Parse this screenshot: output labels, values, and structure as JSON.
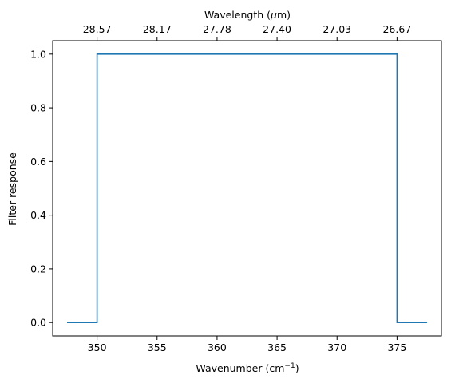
{
  "chart_data": {
    "type": "line",
    "title": "",
    "xlabel": "Wavenumber (cm",
    "xlabel_sup": "−1",
    "xlabel_end": ")",
    "ylabel": "Filter response",
    "top_xlabel": "Wavelength (",
    "top_xlabel_mu": "μ",
    "top_xlabel_end": "m)",
    "xlim": [
      346.3,
      378.7
    ],
    "ylim": [
      -0.05,
      1.05
    ],
    "grid": false,
    "x_ticks": [
      350,
      355,
      360,
      365,
      370,
      375
    ],
    "x_tick_labels": [
      "350",
      "355",
      "360",
      "365",
      "370",
      "375"
    ],
    "y_ticks": [
      0.0,
      0.2,
      0.4,
      0.6,
      0.8,
      1.0
    ],
    "y_tick_labels": [
      "0.0",
      "0.2",
      "0.4",
      "0.6",
      "0.8",
      "1.0"
    ],
    "top_x_ticks": [
      350,
      355,
      360,
      365,
      370,
      375
    ],
    "top_x_tick_labels": [
      "28.57",
      "28.17",
      "27.78",
      "27.40",
      "27.03",
      "26.67"
    ],
    "series": [
      {
        "color": "#1f77b4",
        "x": [
          347.5,
          350,
          350,
          375,
          375,
          377.5
        ],
        "y": [
          0,
          0,
          1,
          1,
          0,
          0
        ]
      }
    ]
  }
}
